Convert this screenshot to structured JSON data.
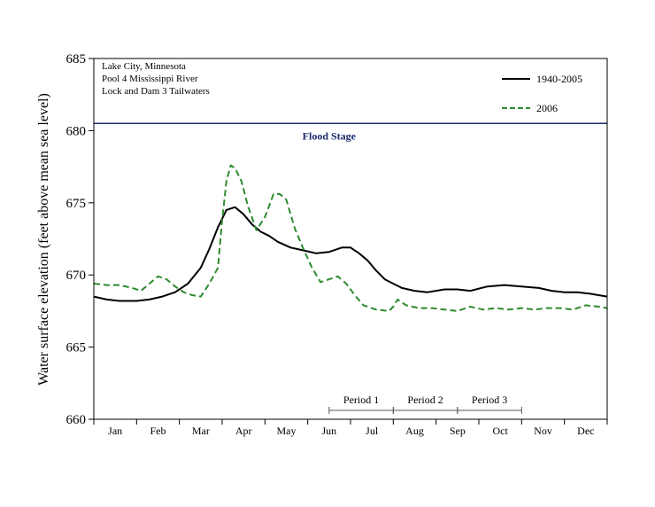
{
  "chart_data": {
    "type": "line",
    "ylabel": "Water surface elevation (feet above mean sea level)",
    "xlabel": "",
    "ylim": [
      660,
      685
    ],
    "xlim": [
      0,
      12
    ],
    "yticks": [
      660,
      665,
      670,
      675,
      680,
      685
    ],
    "months": [
      "Jan",
      "Feb",
      "Mar",
      "Apr",
      "May",
      "Jun",
      "Jul",
      "Aug",
      "Sep",
      "Oct",
      "Nov",
      "Dec"
    ],
    "annotation_lines": [
      "Lake City, Minnesota",
      "Pool 4 Mississippi River",
      "Lock and Dam 3 Tailwaters"
    ],
    "flood_stage": {
      "label": "Flood Stage",
      "value": 680.5,
      "color": "#1a2a6c"
    },
    "periods": [
      {
        "label": "Period 1",
        "start": 5.5,
        "end": 7.0
      },
      {
        "label": "Period 2",
        "start": 7.0,
        "end": 8.5
      },
      {
        "label": "Period 3",
        "start": 8.5,
        "end": 10.0
      }
    ],
    "legend_position": "top-right",
    "series": [
      {
        "name": "1940-2005",
        "color": "#000000",
        "dash": "solid",
        "x": [
          0,
          0.3,
          0.6,
          1.0,
          1.3,
          1.6,
          1.9,
          2.2,
          2.5,
          2.7,
          2.9,
          3.1,
          3.3,
          3.5,
          3.7,
          3.9,
          4.1,
          4.3,
          4.6,
          4.9,
          5.2,
          5.5,
          5.8,
          6.0,
          6.2,
          6.4,
          6.6,
          6.8,
          7.0,
          7.2,
          7.5,
          7.8,
          8.2,
          8.5,
          8.8,
          9.2,
          9.6,
          10.0,
          10.4,
          10.7,
          11.0,
          11.3,
          11.6,
          11.8,
          12.0
        ],
        "y": [
          668.5,
          668.3,
          668.2,
          668.2,
          668.3,
          668.5,
          668.8,
          669.4,
          670.5,
          671.8,
          673.3,
          674.5,
          674.7,
          674.2,
          673.5,
          673.0,
          672.7,
          672.3,
          671.9,
          671.7,
          671.5,
          671.6,
          671.9,
          671.9,
          671.5,
          671.0,
          670.3,
          669.7,
          669.4,
          669.1,
          668.9,
          668.8,
          669.0,
          669.0,
          668.9,
          669.2,
          669.3,
          669.2,
          669.1,
          668.9,
          668.8,
          668.8,
          668.7,
          668.6,
          668.5
        ]
      },
      {
        "name": "2006",
        "color": "#2e8b2e",
        "dash": "dashed",
        "x": [
          0,
          0.3,
          0.6,
          0.9,
          1.1,
          1.3,
          1.5,
          1.7,
          1.9,
          2.1,
          2.3,
          2.5,
          2.7,
          2.9,
          3.0,
          3.1,
          3.2,
          3.3,
          3.45,
          3.6,
          3.8,
          4.0,
          4.2,
          4.35,
          4.5,
          4.7,
          4.9,
          5.1,
          5.3,
          5.5,
          5.7,
          5.9,
          6.1,
          6.3,
          6.6,
          6.9,
          7.0,
          7.1,
          7.3,
          7.6,
          7.9,
          8.2,
          8.5,
          8.8,
          9.1,
          9.4,
          9.7,
          10.0,
          10.3,
          10.6,
          10.9,
          11.2,
          11.5,
          11.8,
          12.0
        ],
        "y": [
          669.4,
          669.3,
          669.3,
          669.1,
          668.9,
          669.4,
          669.9,
          669.7,
          669.2,
          668.8,
          668.6,
          668.5,
          669.4,
          670.5,
          673.8,
          676.5,
          677.6,
          677.4,
          676.5,
          674.8,
          673.1,
          674.0,
          675.6,
          675.6,
          675.2,
          673.2,
          671.8,
          670.5,
          669.5,
          669.7,
          669.9,
          669.4,
          668.6,
          667.9,
          667.6,
          667.5,
          667.8,
          668.3,
          667.9,
          667.7,
          667.7,
          667.6,
          667.5,
          667.8,
          667.6,
          667.7,
          667.6,
          667.7,
          667.6,
          667.7,
          667.7,
          667.6,
          667.9,
          667.8,
          667.7
        ]
      }
    ]
  }
}
